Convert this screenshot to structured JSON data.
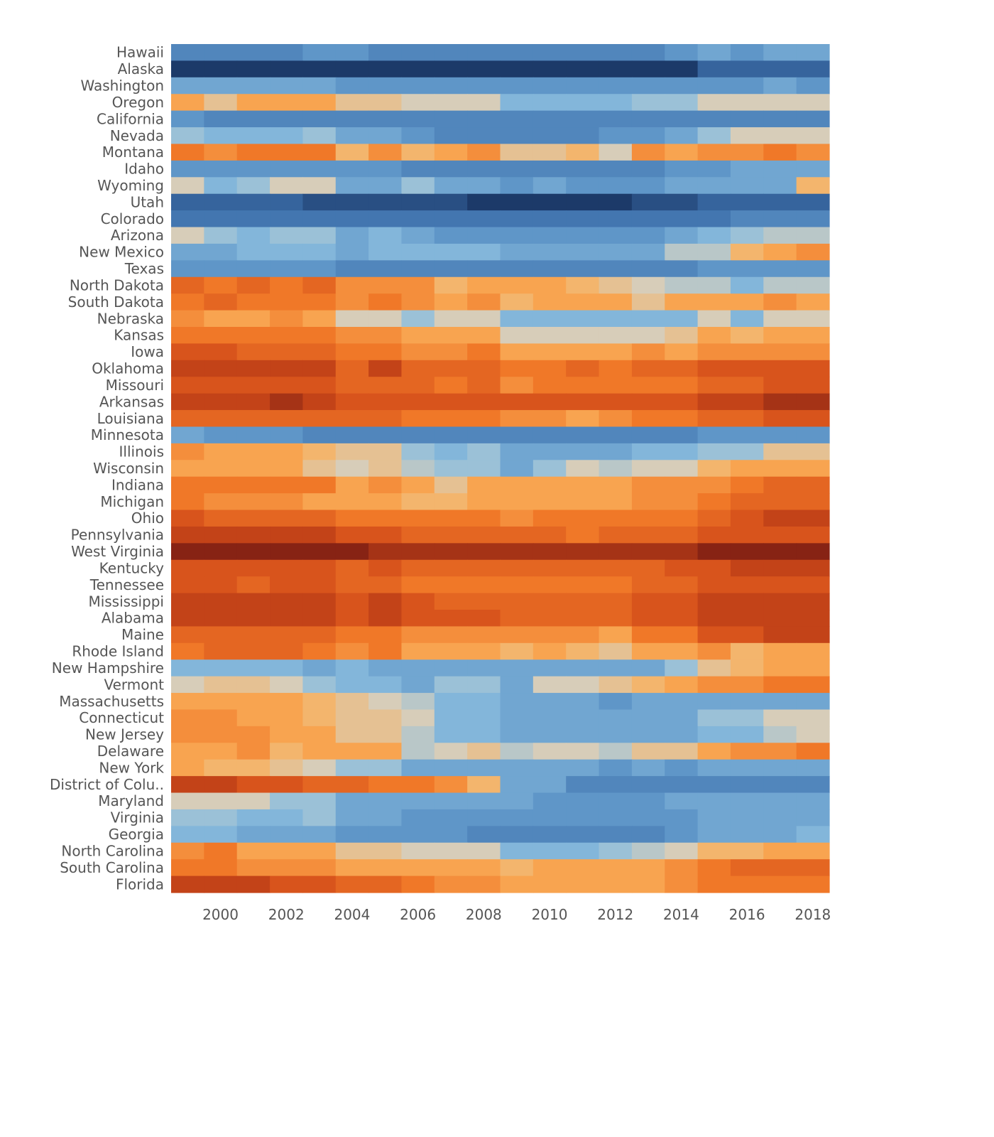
{
  "chart_data": {
    "type": "heatmap",
    "title": "",
    "xlabel": "",
    "ylabel": "",
    "x": [
      1999,
      2000,
      2001,
      2002,
      2003,
      2004,
      2005,
      2006,
      2007,
      2008,
      2009,
      2010,
      2011,
      2012,
      2013,
      2014,
      2015,
      2016,
      2017,
      2018
    ],
    "x_tick_labels": [
      "2000",
      "2002",
      "2004",
      "2006",
      "2008",
      "2010",
      "2012",
      "2014",
      "2016",
      "2018"
    ],
    "x_ticks": [
      2000,
      2002,
      2004,
      2006,
      2008,
      2010,
      2012,
      2014,
      2016,
      2018
    ],
    "value_scale": "diverging: -10 = dark blue, 0 = beige, +10 = dark orange/red (relative intensity read from colour)",
    "rows": [
      {
        "label": "Hawaii",
        "values": [
          -6,
          -6,
          -6,
          -6,
          -5,
          -5,
          -6,
          -6,
          -6,
          -6,
          -6,
          -6,
          -6,
          -6,
          -6,
          -5,
          -4,
          -5,
          -4,
          -4
        ]
      },
      {
        "label": "Alaska",
        "values": [
          -10,
          -10,
          -10,
          -10,
          -10,
          -10,
          -10,
          -10,
          -10,
          -10,
          -10,
          -10,
          -10,
          -10,
          -10,
          -10,
          -8,
          -8,
          -8,
          -8
        ]
      },
      {
        "label": "Washington",
        "values": [
          -4,
          -4,
          -4,
          -4,
          -4,
          -5,
          -5,
          -5,
          -5,
          -5,
          -5,
          -5,
          -5,
          -5,
          -5,
          -5,
          -5,
          -5,
          -4,
          -5
        ]
      },
      {
        "label": "Oregon",
        "values": [
          3,
          1,
          3,
          3,
          3,
          1,
          1,
          0,
          0,
          0,
          -3,
          -3,
          -3,
          -3,
          -2,
          -2,
          0,
          0,
          0,
          0
        ]
      },
      {
        "label": "California",
        "values": [
          -5,
          -6,
          -6,
          -6,
          -6,
          -6,
          -6,
          -6,
          -6,
          -6,
          -6,
          -6,
          -6,
          -6,
          -6,
          -6,
          -6,
          -6,
          -6,
          -6
        ]
      },
      {
        "label": "Nevada",
        "values": [
          -2,
          -3,
          -3,
          -3,
          -2,
          -4,
          -4,
          -5,
          -6,
          -6,
          -6,
          -6,
          -6,
          -5,
          -5,
          -4,
          -2,
          0,
          0,
          0
        ]
      },
      {
        "label": "Montana",
        "values": [
          5,
          4,
          5,
          5,
          5,
          2,
          4,
          2,
          3,
          4,
          1,
          1,
          2,
          0,
          4,
          3,
          4,
          4,
          5,
          4
        ]
      },
      {
        "label": "Idaho",
        "values": [
          -5,
          -5,
          -5,
          -5,
          -5,
          -5,
          -5,
          -6,
          -6,
          -6,
          -6,
          -6,
          -6,
          -6,
          -6,
          -5,
          -5,
          -4,
          -4,
          -4
        ]
      },
      {
        "label": "Wyoming",
        "values": [
          0,
          -3,
          -2,
          0,
          0,
          -4,
          -4,
          -2,
          -4,
          -4,
          -5,
          -4,
          -5,
          -5,
          -5,
          -4,
          -4,
          -4,
          -4,
          2
        ]
      },
      {
        "label": "Utah",
        "values": [
          -8,
          -8,
          -8,
          -8,
          -9,
          -9,
          -9,
          -9,
          -9,
          -10,
          -10,
          -10,
          -10,
          -10,
          -9,
          -9,
          -8,
          -8,
          -8,
          -8
        ]
      },
      {
        "label": "Colorado",
        "values": [
          -7,
          -7,
          -7,
          -7,
          -7,
          -7,
          -7,
          -7,
          -7,
          -7,
          -7,
          -7,
          -7,
          -7,
          -7,
          -7,
          -7,
          -6,
          -6,
          -6
        ]
      },
      {
        "label": "Arizona",
        "values": [
          0,
          -2,
          -3,
          -2,
          -2,
          -4,
          -3,
          -4,
          -5,
          -5,
          -5,
          -5,
          -5,
          -5,
          -5,
          -4,
          -3,
          -2,
          -1,
          -1
        ]
      },
      {
        "label": "New Mexico",
        "values": [
          -4,
          -4,
          -3,
          -3,
          -3,
          -4,
          -3,
          -3,
          -3,
          -3,
          -4,
          -4,
          -4,
          -4,
          -4,
          -1,
          -1,
          2,
          3,
          4
        ]
      },
      {
        "label": "Texas",
        "values": [
          -5,
          -5,
          -5,
          -5,
          -5,
          -6,
          -6,
          -6,
          -6,
          -6,
          -6,
          -6,
          -6,
          -6,
          -6,
          -6,
          -5,
          -5,
          -5,
          -5
        ]
      },
      {
        "label": "North Dakota",
        "values": [
          6,
          5,
          6,
          5,
          6,
          4,
          4,
          4,
          2,
          3,
          3,
          3,
          2,
          1,
          0,
          -1,
          -1,
          -3,
          -1,
          -1
        ]
      },
      {
        "label": "South Dakota",
        "values": [
          5,
          6,
          5,
          5,
          5,
          4,
          5,
          4,
          3,
          4,
          2,
          3,
          3,
          3,
          1,
          3,
          3,
          3,
          4,
          3
        ]
      },
      {
        "label": "Nebraska",
        "values": [
          4,
          3,
          3,
          4,
          3,
          0,
          0,
          -2,
          0,
          0,
          -3,
          -3,
          -3,
          -3,
          -3,
          -3,
          0,
          -3,
          0,
          0
        ]
      },
      {
        "label": "Kansas",
        "values": [
          5,
          5,
          5,
          5,
          5,
          4,
          4,
          3,
          3,
          3,
          0,
          0,
          0,
          0,
          0,
          1,
          3,
          2,
          3,
          3
        ]
      },
      {
        "label": "Iowa",
        "values": [
          7,
          7,
          6,
          6,
          6,
          5,
          5,
          4,
          4,
          5,
          3,
          3,
          3,
          3,
          4,
          3,
          4,
          4,
          4,
          4
        ]
      },
      {
        "label": "Oklahoma",
        "values": [
          8,
          8,
          8,
          8,
          8,
          6,
          8,
          6,
          6,
          6,
          5,
          5,
          6,
          5,
          6,
          6,
          7,
          7,
          7,
          7
        ]
      },
      {
        "label": "Missouri",
        "values": [
          7,
          7,
          7,
          7,
          7,
          6,
          6,
          6,
          5,
          6,
          4,
          5,
          5,
          5,
          5,
          5,
          6,
          6,
          7,
          7
        ]
      },
      {
        "label": "Arkansas",
        "values": [
          8,
          8,
          8,
          9,
          8,
          7,
          7,
          7,
          7,
          7,
          7,
          7,
          7,
          7,
          7,
          7,
          8,
          8,
          9,
          9
        ]
      },
      {
        "label": "Louisiana",
        "values": [
          6,
          6,
          6,
          6,
          6,
          6,
          6,
          5,
          5,
          5,
          4,
          4,
          3,
          4,
          5,
          5,
          6,
          6,
          7,
          7
        ]
      },
      {
        "label": "Minnesota",
        "values": [
          -4,
          -5,
          -5,
          -5,
          -6,
          -6,
          -6,
          -6,
          -6,
          -6,
          -6,
          -6,
          -6,
          -6,
          -6,
          -6,
          -5,
          -5,
          -5,
          -5
        ]
      },
      {
        "label": "Illinois",
        "values": [
          4,
          3,
          3,
          3,
          2,
          1,
          1,
          -2,
          -3,
          -2,
          -4,
          -4,
          -4,
          -4,
          -3,
          -3,
          -2,
          -2,
          1,
          1
        ]
      },
      {
        "label": "Wisconsin",
        "values": [
          3,
          3,
          3,
          3,
          1,
          0,
          1,
          -1,
          -2,
          -2,
          -4,
          -2,
          0,
          -1,
          0,
          0,
          2,
          3,
          3,
          3
        ]
      },
      {
        "label": "Indiana",
        "values": [
          5,
          5,
          5,
          5,
          5,
          3,
          4,
          3,
          1,
          3,
          3,
          3,
          3,
          3,
          4,
          4,
          4,
          5,
          6,
          6
        ]
      },
      {
        "label": "Michigan",
        "values": [
          5,
          4,
          4,
          4,
          3,
          3,
          3,
          2,
          2,
          3,
          3,
          3,
          3,
          3,
          4,
          4,
          5,
          6,
          6,
          6
        ]
      },
      {
        "label": "Ohio",
        "values": [
          7,
          6,
          6,
          6,
          6,
          5,
          5,
          5,
          5,
          5,
          4,
          5,
          5,
          5,
          5,
          5,
          6,
          7,
          8,
          8
        ]
      },
      {
        "label": "Pennsylvania",
        "values": [
          8,
          8,
          8,
          8,
          8,
          7,
          7,
          6,
          6,
          6,
          6,
          6,
          5,
          6,
          6,
          6,
          7,
          7,
          7,
          7
        ]
      },
      {
        "label": "West Virginia",
        "values": [
          10,
          10,
          10,
          10,
          10,
          10,
          9,
          9,
          9,
          9,
          9,
          9,
          9,
          9,
          9,
          9,
          10,
          10,
          10,
          10
        ]
      },
      {
        "label": "Kentucky",
        "values": [
          7,
          7,
          7,
          7,
          7,
          6,
          7,
          6,
          6,
          6,
          6,
          6,
          6,
          6,
          6,
          7,
          7,
          8,
          8,
          8
        ]
      },
      {
        "label": "Tennessee",
        "values": [
          7,
          7,
          6,
          7,
          7,
          6,
          6,
          5,
          5,
          5,
          5,
          5,
          5,
          5,
          6,
          6,
          7,
          7,
          7,
          7
        ]
      },
      {
        "label": "Mississippi",
        "values": [
          8,
          8,
          8,
          8,
          8,
          7,
          8,
          7,
          6,
          6,
          6,
          6,
          6,
          6,
          7,
          7,
          8,
          8,
          8,
          8
        ]
      },
      {
        "label": "Alabama",
        "values": [
          8,
          8,
          8,
          8,
          8,
          7,
          8,
          7,
          7,
          7,
          6,
          6,
          6,
          6,
          7,
          7,
          8,
          8,
          8,
          8
        ]
      },
      {
        "label": "Maine",
        "values": [
          6,
          6,
          6,
          6,
          6,
          5,
          5,
          4,
          4,
          4,
          4,
          4,
          4,
          3,
          5,
          5,
          7,
          7,
          8,
          8
        ]
      },
      {
        "label": "Rhode Island",
        "values": [
          5,
          6,
          6,
          6,
          5,
          4,
          5,
          3,
          3,
          3,
          2,
          3,
          2,
          1,
          3,
          3,
          4,
          2,
          3,
          3
        ]
      },
      {
        "label": "New Hampshire",
        "values": [
          -3,
          -3,
          -3,
          -3,
          -4,
          -3,
          -4,
          -4,
          -4,
          -4,
          -4,
          -4,
          -4,
          -4,
          -4,
          -2,
          1,
          2,
          3,
          3
        ]
      },
      {
        "label": "Vermont",
        "values": [
          0,
          1,
          1,
          0,
          -2,
          -3,
          -3,
          -4,
          -2,
          -2,
          -4,
          0,
          0,
          1,
          2,
          3,
          4,
          4,
          5,
          5
        ]
      },
      {
        "label": "Massachusetts",
        "values": [
          3,
          3,
          3,
          3,
          2,
          1,
          0,
          -1,
          -3,
          -3,
          -4,
          -4,
          -4,
          -5,
          -4,
          -4,
          -4,
          -4,
          -4,
          -4
        ]
      },
      {
        "label": "Connecticut",
        "values": [
          4,
          4,
          3,
          3,
          2,
          1,
          1,
          0,
          -3,
          -3,
          -4,
          -4,
          -4,
          -4,
          -4,
          -4,
          -2,
          -2,
          0,
          0
        ]
      },
      {
        "label": "New Jersey",
        "values": [
          4,
          4,
          4,
          3,
          3,
          1,
          1,
          -1,
          -3,
          -3,
          -4,
          -4,
          -4,
          -4,
          -4,
          -4,
          -3,
          -3,
          -1,
          0
        ]
      },
      {
        "label": "Delaware",
        "values": [
          3,
          3,
          4,
          2,
          3,
          3,
          3,
          -1,
          0,
          1,
          -1,
          0,
          0,
          -1,
          1,
          1,
          3,
          4,
          4,
          5
        ]
      },
      {
        "label": "New York",
        "values": [
          3,
          2,
          2,
          1,
          0,
          -2,
          -2,
          -4,
          -4,
          -4,
          -4,
          -4,
          -4,
          -5,
          -4,
          -5,
          -4,
          -4,
          -4,
          -4
        ]
      },
      {
        "label": "District of Colu..",
        "values": [
          8,
          8,
          7,
          7,
          6,
          6,
          5,
          5,
          4,
          2,
          -4,
          -4,
          -6,
          -6,
          -6,
          -6,
          -6,
          -6,
          -6,
          -6
        ]
      },
      {
        "label": "Maryland",
        "values": [
          0,
          0,
          0,
          -2,
          -2,
          -4,
          -4,
          -4,
          -4,
          -4,
          -4,
          -5,
          -5,
          -5,
          -5,
          -4,
          -4,
          -4,
          -4,
          -4
        ]
      },
      {
        "label": "Virginia",
        "values": [
          -2,
          -2,
          -3,
          -3,
          -2,
          -4,
          -4,
          -5,
          -5,
          -5,
          -5,
          -5,
          -5,
          -5,
          -5,
          -5,
          -4,
          -4,
          -4,
          -4
        ]
      },
      {
        "label": "Georgia",
        "values": [
          -3,
          -3,
          -4,
          -4,
          -4,
          -5,
          -5,
          -5,
          -5,
          -6,
          -6,
          -6,
          -6,
          -6,
          -6,
          -5,
          -4,
          -4,
          -4,
          -3
        ]
      },
      {
        "label": "North Carolina",
        "values": [
          4,
          5,
          3,
          3,
          3,
          1,
          1,
          0,
          0,
          0,
          -3,
          -3,
          -3,
          -2,
          -1,
          0,
          2,
          2,
          3,
          3
        ]
      },
      {
        "label": "South Carolina",
        "values": [
          5,
          5,
          4,
          4,
          4,
          3,
          3,
          3,
          3,
          3,
          2,
          3,
          3,
          3,
          3,
          4,
          5,
          6,
          6,
          6
        ]
      },
      {
        "label": "Florida",
        "values": [
          8,
          8,
          8,
          7,
          7,
          6,
          6,
          5,
          4,
          4,
          3,
          3,
          3,
          3,
          3,
          4,
          5,
          5,
          5,
          5
        ]
      }
    ]
  }
}
